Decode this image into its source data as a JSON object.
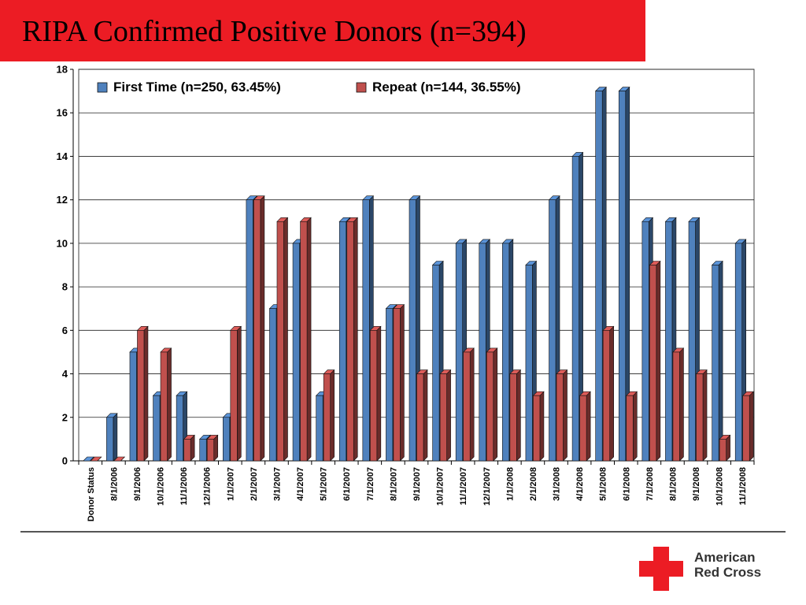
{
  "header": {
    "title": "RIPA Confirmed Positive Donors (n=394)"
  },
  "logo": {
    "line1": "American",
    "line2": "Red Cross"
  },
  "colors": {
    "title_bar": "#ec1c24",
    "first_time": "#4f81bd",
    "repeat": "#c0504d"
  },
  "chart_data": {
    "type": "bar",
    "title": "",
    "xlabel": "",
    "ylabel": "",
    "ylim": [
      0,
      18
    ],
    "yticks": [
      0,
      2,
      4,
      6,
      8,
      10,
      12,
      14,
      16,
      18
    ],
    "grid": true,
    "legend_position": "top-left",
    "categories": [
      "Donor Status",
      "8/1/2006",
      "9/1/2006",
      "10/1/2006",
      "11/1/2006",
      "12/1/2006",
      "1/1/2007",
      "2/1/2007",
      "3/1/2007",
      "4/1/2007",
      "5/1/2007",
      "6/1/2007",
      "7/1/2007",
      "8/1/2007",
      "9/1/2007",
      "10/1/2007",
      "11/1/2007",
      "12/1/2007",
      "1/1/2008",
      "2/1/2008",
      "3/1/2008",
      "4/1/2008",
      "5/1/2008",
      "6/1/2008",
      "7/1/2008",
      "8/1/2008",
      "9/1/2008",
      "10/1/2008",
      "11/1/2008"
    ],
    "series": [
      {
        "name": "First Time (n=250, 63.45%)",
        "color": "#4f81bd",
        "values": [
          0,
          2,
          5,
          3,
          3,
          1,
          2,
          12,
          7,
          10,
          3,
          11,
          12,
          7,
          12,
          9,
          10,
          10,
          10,
          9,
          12,
          14,
          17,
          17,
          11,
          11,
          11,
          9,
          10
        ]
      },
      {
        "name": "Repeat (n=144, 36.55%)",
        "color": "#c0504d",
        "values": [
          0,
          0,
          6,
          5,
          1,
          1,
          6,
          12,
          11,
          11,
          4,
          11,
          6,
          7,
          4,
          4,
          5,
          5,
          4,
          3,
          4,
          3,
          6,
          3,
          9,
          5,
          4,
          1,
          3
        ]
      }
    ]
  }
}
